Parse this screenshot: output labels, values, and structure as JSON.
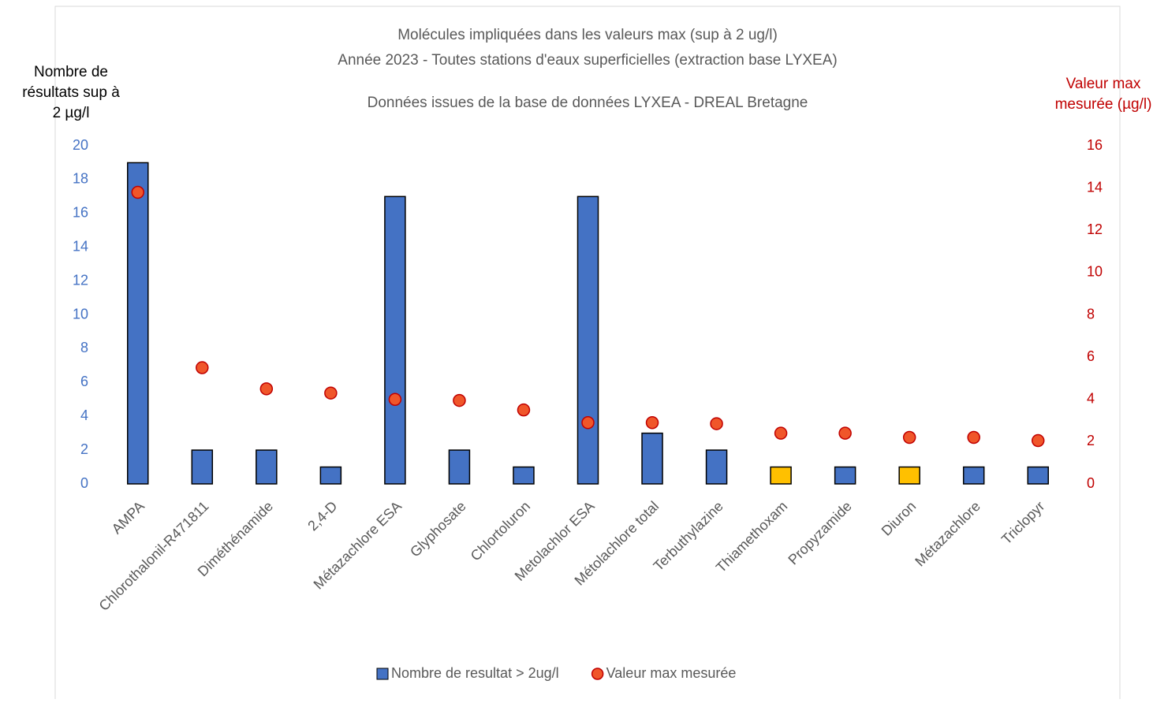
{
  "chart_data": {
    "type": "bar_scatter",
    "title_lines": [
      "Molécules impliquées dans les valeurs max (sup à 2 ug/l)",
      "Année 2023 - Toutes stations d'eaux superficielles (extraction base LYXEA)"
    ],
    "subtitle": "Données issues de la base de données LYXEA - DREAL Bretagne",
    "y_label_lines": [
      "Nombre de",
      "résultats sup à",
      "2 µg/l"
    ],
    "y2_label_lines": [
      "Valeur max",
      "mesurée (µg/l)"
    ],
    "categories": [
      "AMPA",
      "Chlorothalonil-R471811",
      "Diméthénamide",
      "2,4-D",
      "Métazachlore ESA",
      "Glyphosate",
      "Chlortoluron",
      "Metolachlor ESA",
      "Métolachlore total",
      "Terbuthylazine",
      "Thiamethoxam",
      "Propyzamide",
      "Diuron",
      "Métazachlore",
      "Triclopyr"
    ],
    "series": [
      {
        "name": "Nombre de resultat > 2ug/l",
        "type": "bar",
        "color": "#4472c4",
        "colors": [
          "#4472c4",
          "#4472c4",
          "#4472c4",
          "#4472c4",
          "#4472c4",
          "#4472c4",
          "#4472c4",
          "#4472c4",
          "#4472c4",
          "#4472c4",
          "#ffc000",
          "#4472c4",
          "#ffc000",
          "#4472c4",
          "#4472c4"
        ],
        "values": [
          19,
          2,
          2,
          1,
          17,
          2,
          1,
          17,
          3,
          2,
          1,
          1,
          1,
          1,
          1
        ]
      },
      {
        "name": "Valeur max mesurée",
        "type": "scatter",
        "axis": "y2",
        "color": "#f0562a",
        "values": [
          13.8,
          5.5,
          4.5,
          4.3,
          4.0,
          3.95,
          3.5,
          2.9,
          2.9,
          2.85,
          2.4,
          2.4,
          2.2,
          2.2,
          2.05
        ]
      }
    ],
    "ylim": [
      0,
      20
    ],
    "yticks": [
      0,
      2,
      4,
      6,
      8,
      10,
      12,
      14,
      16,
      18,
      20
    ],
    "y2lim": [
      0,
      16
    ],
    "y2ticks": [
      0,
      2,
      4,
      6,
      8,
      10,
      12,
      14,
      16
    ],
    "legend": "bottom"
  }
}
